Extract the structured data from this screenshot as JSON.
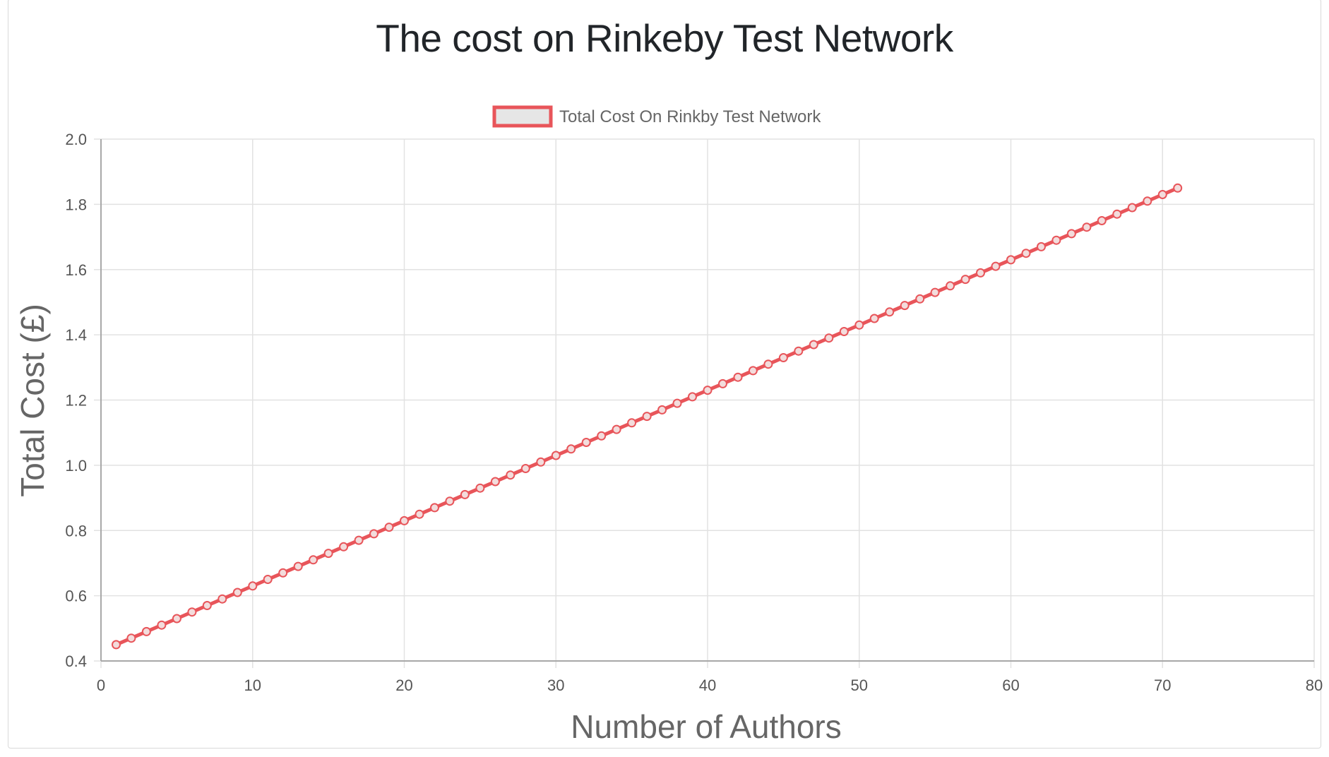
{
  "page": {
    "title": "The cost on Rinkeby Test Network"
  },
  "chart_data": {
    "type": "line",
    "title": "The cost on Rinkeby Test Network",
    "xlabel": "Number of Authors",
    "ylabel": "Total Cost (£)",
    "xlim": [
      0,
      80
    ],
    "ylim": [
      0.4,
      2.0
    ],
    "x_ticks": [
      "0",
      "10",
      "20",
      "30",
      "40",
      "50",
      "60",
      "70",
      "80"
    ],
    "y_ticks": [
      "0.4",
      "0.6",
      "0.8",
      "1.0",
      "1.2",
      "1.4",
      "1.6",
      "1.8",
      "2.0"
    ],
    "grid": true,
    "legend": "top-center",
    "series": [
      {
        "name": "Total Cost On Rinkby Test Network",
        "color": "#e8555a",
        "fill_color": "#e6e6e6",
        "x": [
          1,
          2,
          3,
          4,
          5,
          6,
          7,
          8,
          9,
          10,
          11,
          12,
          13,
          14,
          15,
          16,
          17,
          18,
          19,
          20,
          21,
          22,
          23,
          24,
          25,
          26,
          27,
          28,
          29,
          30,
          31,
          32,
          33,
          34,
          35,
          36,
          37,
          38,
          39,
          40,
          41,
          42,
          43,
          44,
          45,
          46,
          47,
          48,
          49,
          50,
          51,
          52,
          53,
          54,
          55,
          56,
          57,
          58,
          59,
          60,
          61,
          62,
          63,
          64,
          65,
          66,
          67,
          68,
          69,
          70,
          71
        ],
        "values": [
          0.45,
          0.47,
          0.49,
          0.51,
          0.53,
          0.55,
          0.57,
          0.59,
          0.61,
          0.63,
          0.65,
          0.67,
          0.69,
          0.71,
          0.73,
          0.75,
          0.77,
          0.79,
          0.81,
          0.83,
          0.85,
          0.87,
          0.89,
          0.91,
          0.93,
          0.95,
          0.97,
          0.99,
          1.01,
          1.03,
          1.05,
          1.07,
          1.09,
          1.11,
          1.13,
          1.15,
          1.17,
          1.19,
          1.21,
          1.23,
          1.25,
          1.27,
          1.29,
          1.31,
          1.33,
          1.35,
          1.37,
          1.39,
          1.41,
          1.43,
          1.45,
          1.47,
          1.49,
          1.51,
          1.53,
          1.55,
          1.57,
          1.59,
          1.61,
          1.63,
          1.65,
          1.67,
          1.69,
          1.71,
          1.73,
          1.75,
          1.77,
          1.79,
          1.81,
          1.83,
          1.85
        ]
      }
    ]
  }
}
